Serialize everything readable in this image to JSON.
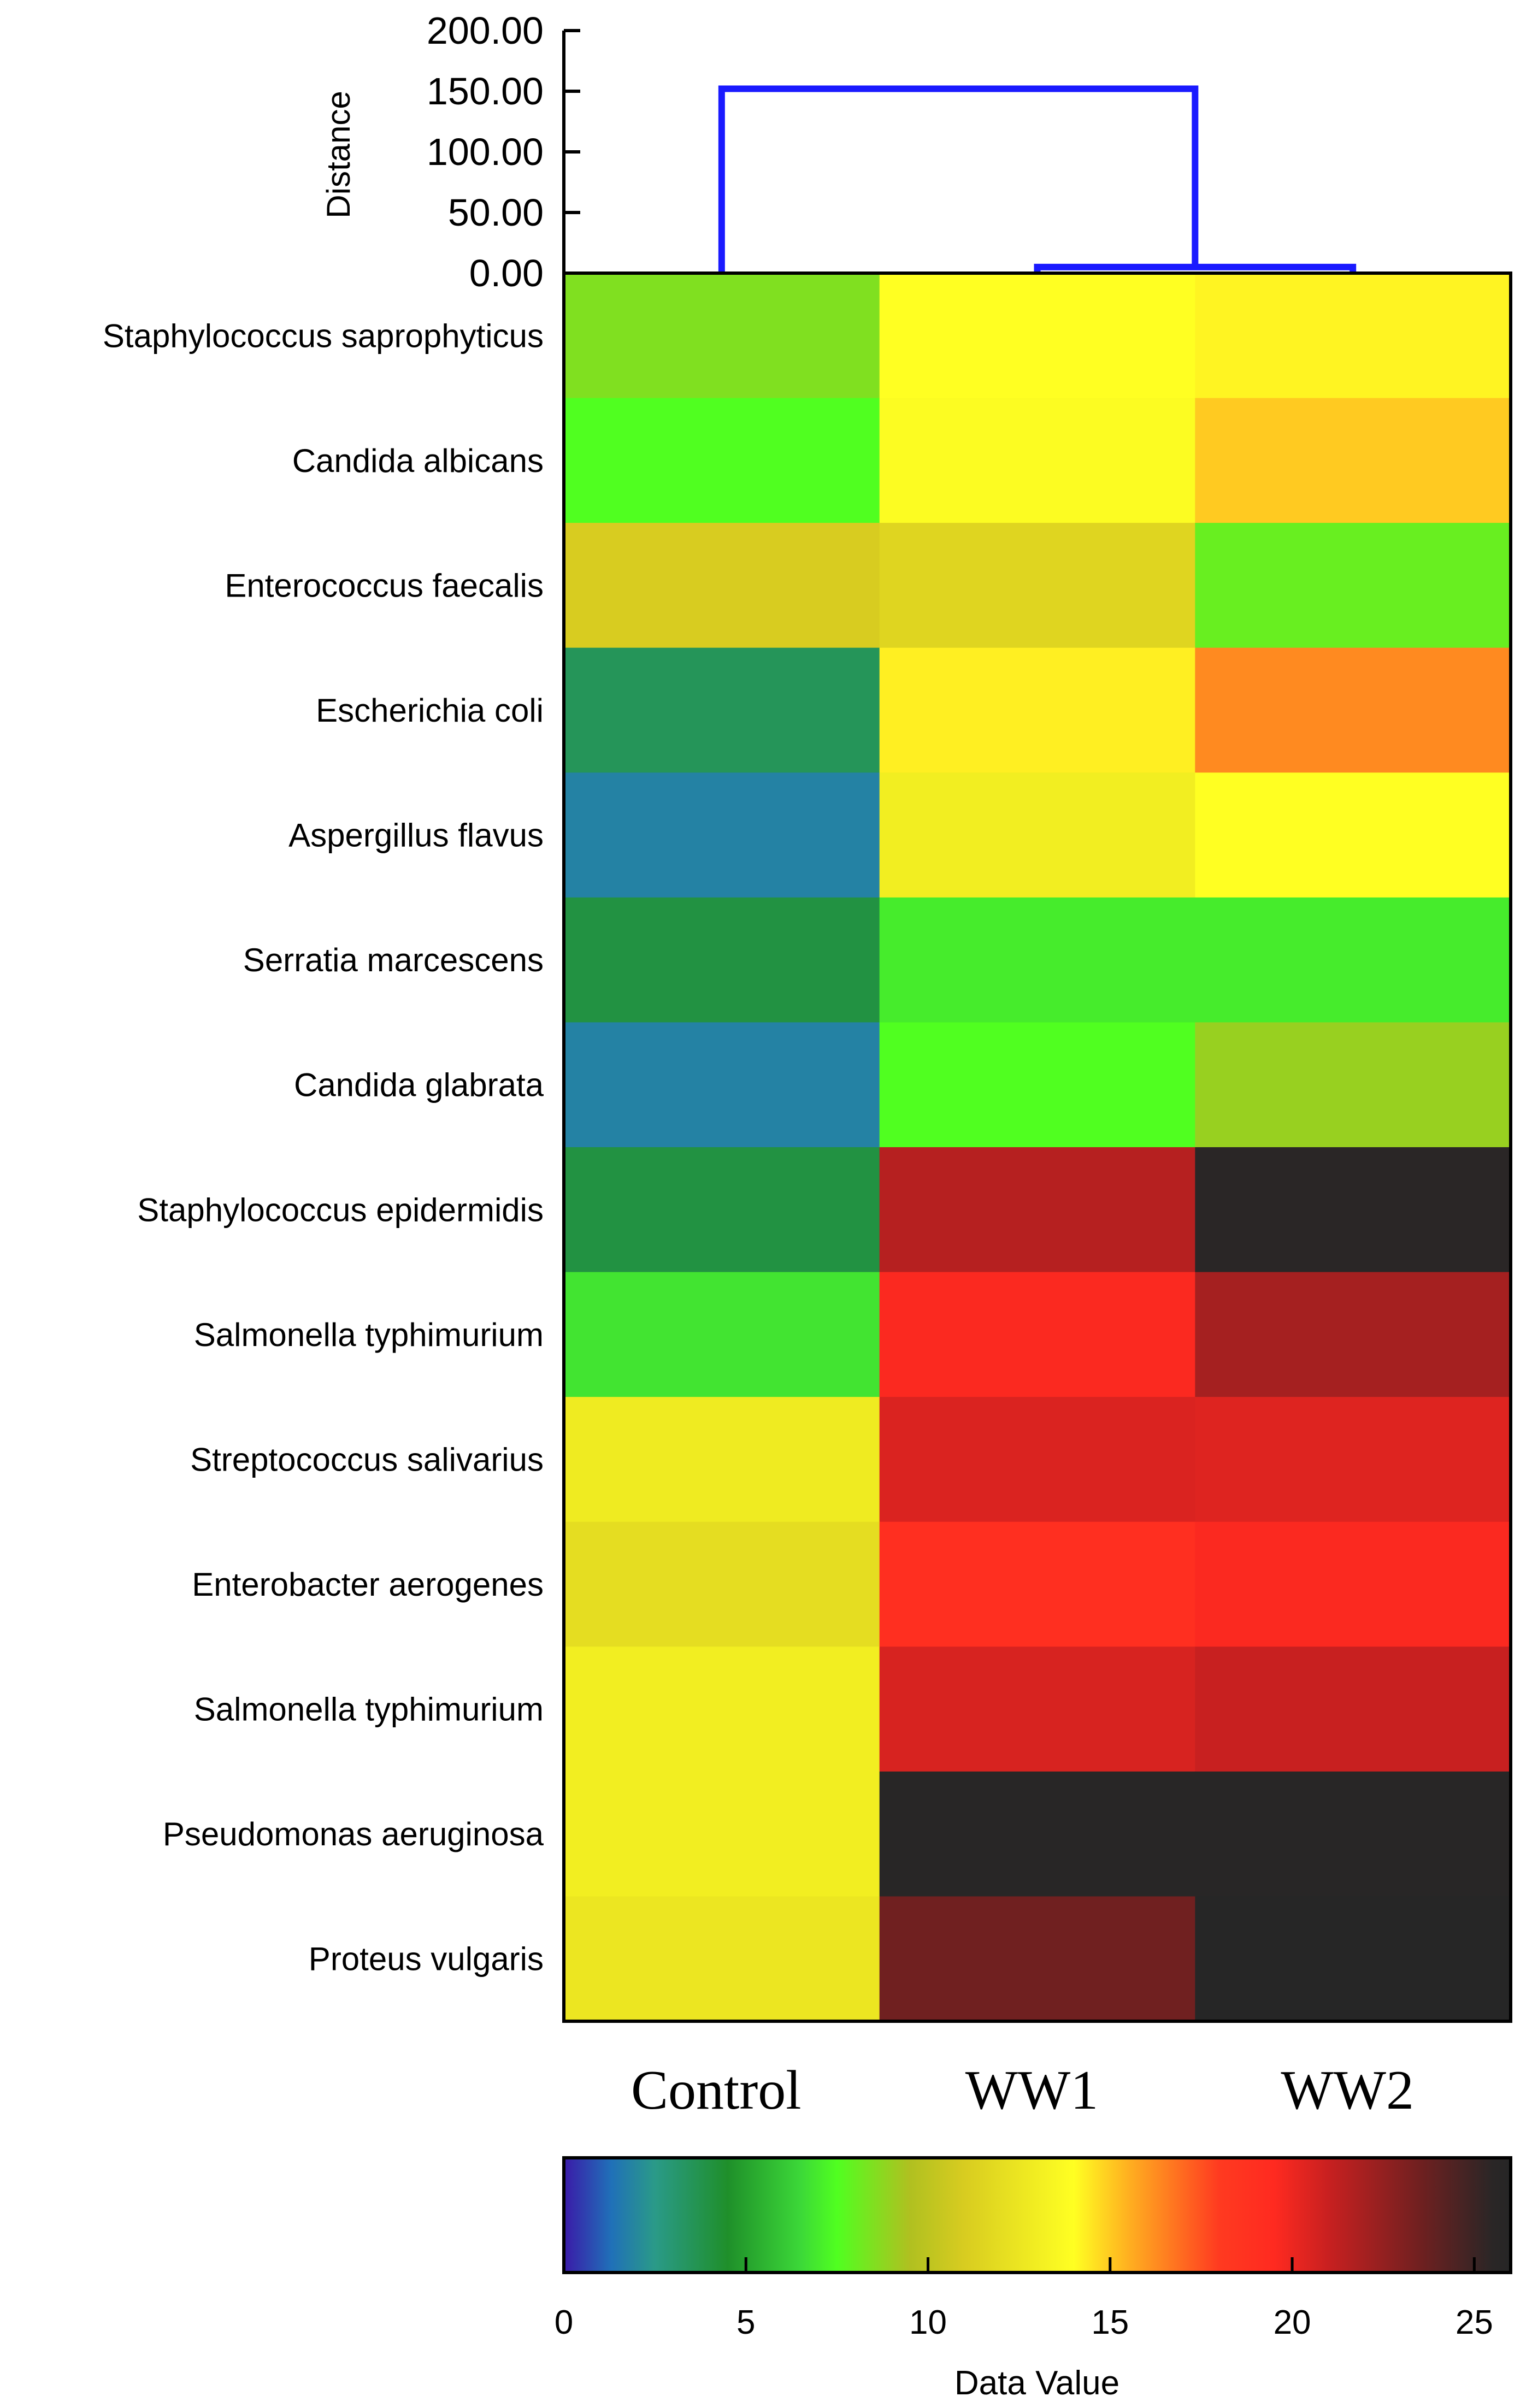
{
  "chart_data": {
    "type": "heatmap",
    "rows": [
      "Staphylococcus saprophyticus",
      "Candida albicans",
      "Enterococcus faecalis",
      "Escherichia coli",
      "Aspergillus flavus",
      "Serratia marcescens",
      "Candida glabrata",
      "Staphylococcus epidermidis",
      "Salmonella typhimurium",
      "Streptococcus salivarius",
      "Enterobacter aerogenes",
      "Salmonella typhimurium",
      "Pseudomonas aeruginosa",
      "Proteus vulgaris"
    ],
    "columns": [
      "Control",
      "WW1",
      "WW2"
    ],
    "values": [
      [
        8.5,
        14.0,
        14.2
      ],
      [
        7.5,
        13.8,
        15.0
      ],
      [
        11.0,
        11.5,
        8.0
      ],
      [
        3.5,
        14.3,
        16.3
      ],
      [
        1.8,
        13.0,
        14.0
      ],
      [
        4.0,
        7.0,
        7.0
      ],
      [
        1.8,
        7.5,
        9.0
      ],
      [
        4.0,
        21.5,
        25.5
      ],
      [
        6.8,
        19.6,
        22.0
      ],
      [
        12.8,
        20.5,
        20.4
      ],
      [
        12.0,
        19.0,
        19.6
      ],
      [
        13.0,
        20.6,
        21.0
      ],
      [
        13.0,
        25.8,
        25.8
      ],
      [
        12.5,
        23.5,
        26.0
      ]
    ],
    "colorbar": {
      "label": "Data Value",
      "range": [
        0,
        26
      ],
      "ticks": [
        "0",
        "5",
        "10",
        "15",
        "20",
        "25"
      ],
      "tick_values": [
        0,
        5,
        10,
        15,
        20,
        25
      ],
      "color_stops": [
        {
          "v": 0,
          "c": "#3a1aa8"
        },
        {
          "v": 1.3,
          "c": "#2070b8"
        },
        {
          "v": 2.5,
          "c": "#2a9a88"
        },
        {
          "v": 4.5,
          "c": "#1f8f2a"
        },
        {
          "v": 6.5,
          "c": "#3cd838"
        },
        {
          "v": 7.5,
          "c": "#50ff20"
        },
        {
          "v": 9.5,
          "c": "#b0c020"
        },
        {
          "v": 11,
          "c": "#d8cc20"
        },
        {
          "v": 14,
          "c": "#ffff22"
        },
        {
          "v": 15.5,
          "c": "#ffb020"
        },
        {
          "v": 18,
          "c": "#ff3a20"
        },
        {
          "v": 19.5,
          "c": "#ff2a20"
        },
        {
          "v": 21,
          "c": "#c82020"
        },
        {
          "v": 23.5,
          "c": "#702020"
        },
        {
          "v": 25.5,
          "c": "#2a2626"
        },
        {
          "v": 26,
          "c": "#262626"
        }
      ]
    },
    "dendrogram": {
      "axis_label": "Distance",
      "ylim": [
        0,
        200
      ],
      "ticks": [
        "0.00",
        "50.00",
        "100.00",
        "150.00",
        "200.00"
      ],
      "tick_values": [
        0,
        50,
        100,
        150,
        200
      ],
      "merges": [
        {
          "left": "WW1",
          "right": "WW2",
          "height": 5
        },
        {
          "left": "Control",
          "right": "WW1+WW2",
          "height": 152
        }
      ],
      "color": "#1a1aff"
    }
  }
}
